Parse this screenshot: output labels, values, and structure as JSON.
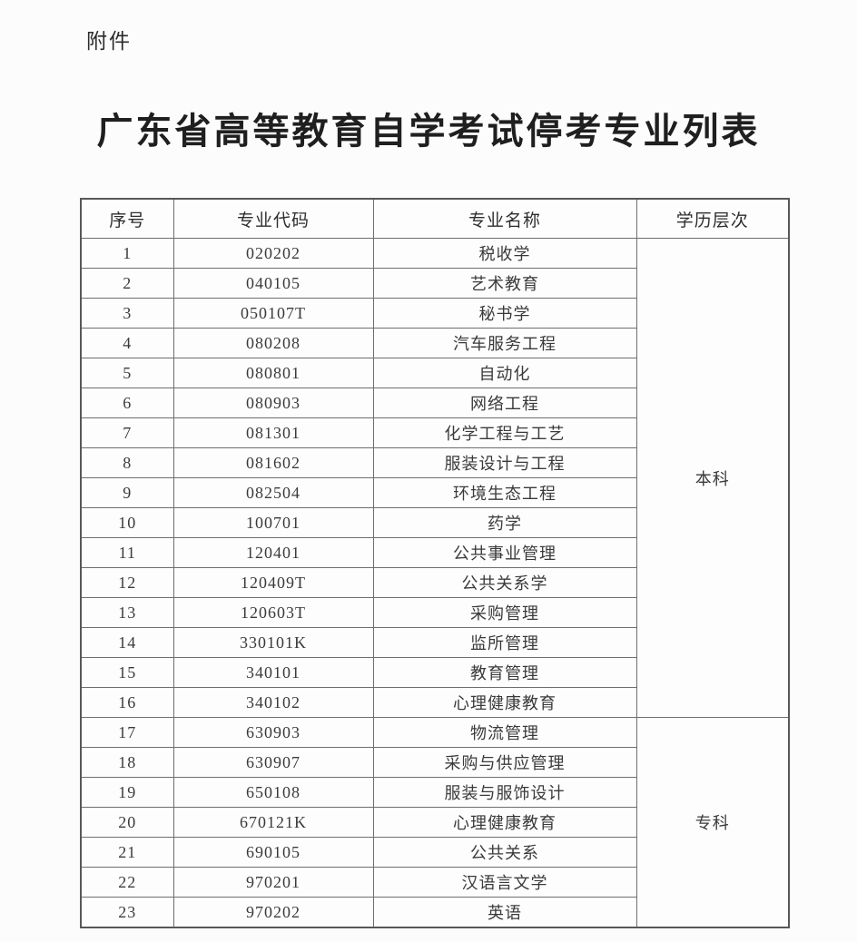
{
  "page": {
    "attachment_label": "附件",
    "title": "广东省高等教育自学考试停考专业列表"
  },
  "table": {
    "headers": [
      "序号",
      "专业代码",
      "专业名称",
      "学历层次"
    ],
    "levels": [
      {
        "label": "本科",
        "start": 1,
        "rowspan": 16
      },
      {
        "label": "专科",
        "start": 17,
        "rowspan": 7
      }
    ],
    "rows": [
      {
        "no": "1",
        "code": "020202",
        "name": "税收学"
      },
      {
        "no": "2",
        "code": "040105",
        "name": "艺术教育"
      },
      {
        "no": "3",
        "code": "050107T",
        "name": "秘书学"
      },
      {
        "no": "4",
        "code": "080208",
        "name": "汽车服务工程"
      },
      {
        "no": "5",
        "code": "080801",
        "name": "自动化"
      },
      {
        "no": "6",
        "code": "080903",
        "name": "网络工程"
      },
      {
        "no": "7",
        "code": "081301",
        "name": "化学工程与工艺"
      },
      {
        "no": "8",
        "code": "081602",
        "name": "服装设计与工程"
      },
      {
        "no": "9",
        "code": "082504",
        "name": "环境生态工程"
      },
      {
        "no": "10",
        "code": "100701",
        "name": "药学"
      },
      {
        "no": "11",
        "code": "120401",
        "name": "公共事业管理"
      },
      {
        "no": "12",
        "code": "120409T",
        "name": "公共关系学"
      },
      {
        "no": "13",
        "code": "120603T",
        "name": "采购管理"
      },
      {
        "no": "14",
        "code": "330101K",
        "name": "监所管理"
      },
      {
        "no": "15",
        "code": "340101",
        "name": "教育管理"
      },
      {
        "no": "16",
        "code": "340102",
        "name": "心理健康教育"
      },
      {
        "no": "17",
        "code": "630903",
        "name": "物流管理"
      },
      {
        "no": "18",
        "code": "630907",
        "name": "采购与供应管理"
      },
      {
        "no": "19",
        "code": "650108",
        "name": "服装与服饰设计"
      },
      {
        "no": "20",
        "code": "670121K",
        "name": "心理健康教育"
      },
      {
        "no": "21",
        "code": "690105",
        "name": "公共关系"
      },
      {
        "no": "22",
        "code": "970201",
        "name": "汉语言文学"
      },
      {
        "no": "23",
        "code": "970202",
        "name": "英语"
      }
    ]
  }
}
